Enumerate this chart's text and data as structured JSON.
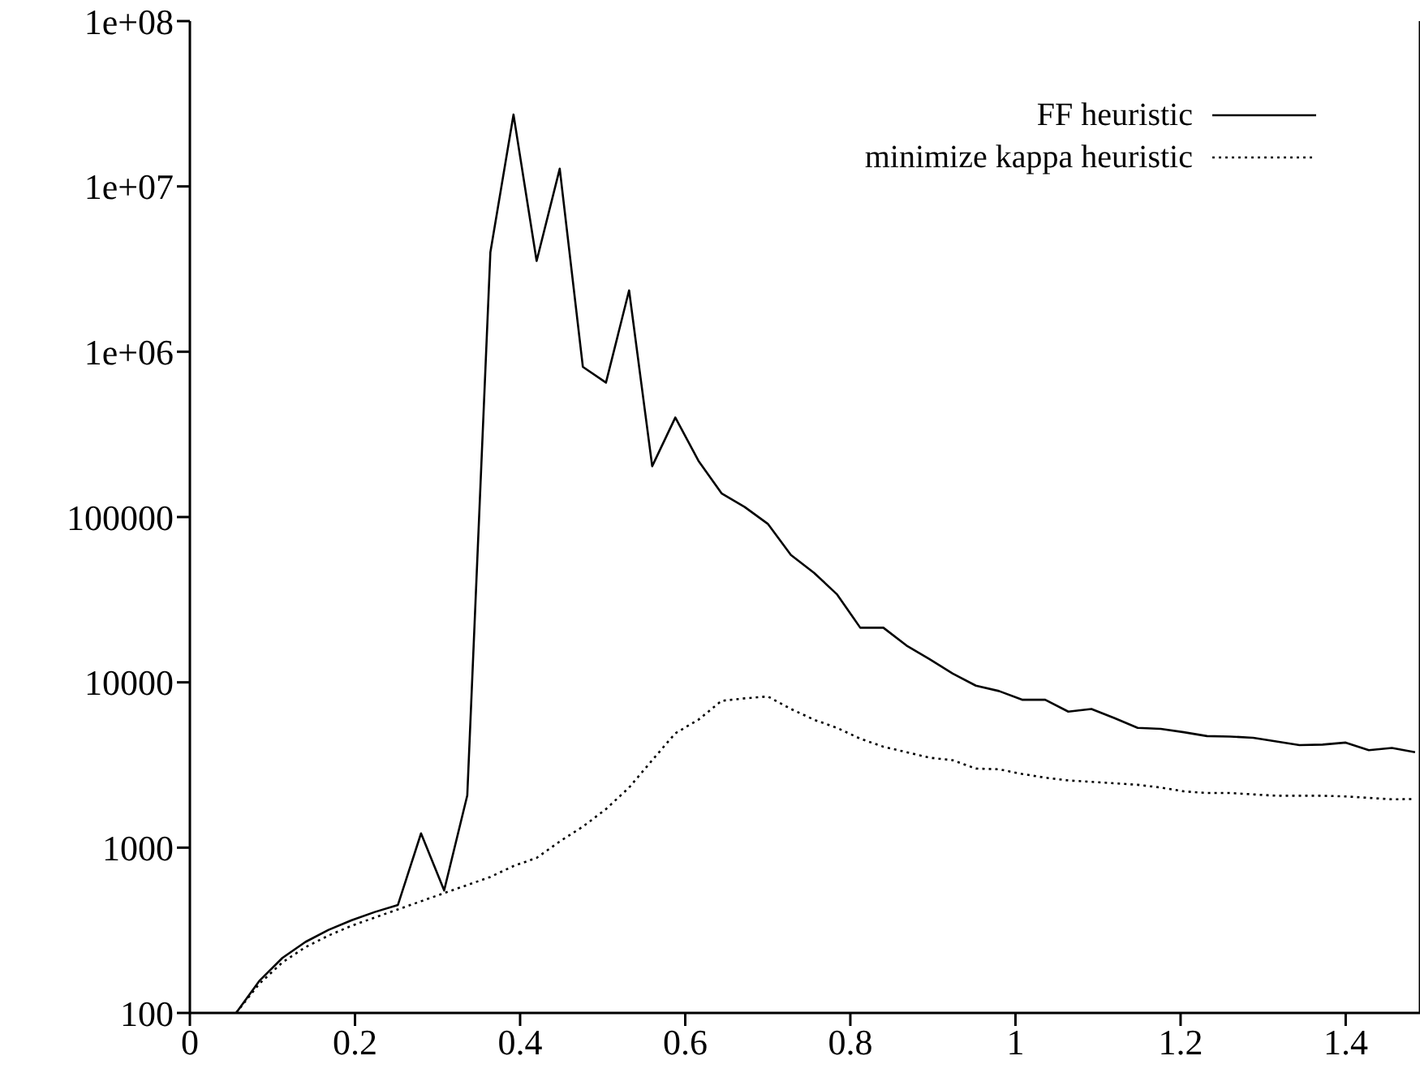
{
  "chart_data": {
    "type": "line",
    "log": "y",
    "grid": false,
    "legend": "top right",
    "xlim": [
      0,
      1.49
    ],
    "xticks": [
      0,
      0.2,
      0.4,
      0.6,
      0.8,
      1,
      1.2,
      1.4
    ],
    "ylim": [
      100,
      100000000
    ],
    "yticks": [
      100,
      1000,
      10000,
      100000,
      {
        "value": 1000000,
        "label": "1e+06"
      },
      {
        "value": 10000000,
        "label": "1e+07"
      },
      {
        "value": 100000000,
        "label": "1e+08"
      }
    ],
    "x": [
      0.056,
      0.084,
      0.112,
      0.14,
      0.168,
      0.196,
      0.224,
      0.252,
      0.28,
      0.308,
      0.336,
      0.364,
      0.392,
      0.42,
      0.448,
      0.476,
      0.504,
      0.532,
      0.56,
      0.588,
      0.616,
      0.644,
      0.672,
      0.7,
      0.728,
      0.756,
      0.784,
      0.812,
      0.84,
      0.868,
      0.896,
      0.924,
      0.952,
      0.98,
      1.008,
      1.036,
      1.064,
      1.092,
      1.12,
      1.148,
      1.176,
      1.204,
      1.232,
      1.26,
      1.288,
      1.316,
      1.344,
      1.372,
      1.4,
      1.428,
      1.456,
      1.484
    ],
    "series": [
      {
        "name": "FF heuristic",
        "color": "#000000",
        "line_style": "solid",
        "values": [
          100,
          156,
          215,
          269,
          318,
          364,
          408,
          450,
          1220,
          551,
          2070,
          4000000,
          27200000,
          3540000,
          12800000,
          810000,
          650000,
          2350000,
          203000,
          400000,
          219000,
          139000,
          115000,
          91000,
          59000,
          46000,
          34000,
          21400,
          21400,
          16700,
          13800,
          11300,
          9550,
          8860,
          7850,
          7850,
          6650,
          6900,
          6070,
          5300,
          5230,
          4990,
          4730,
          4700,
          4620,
          4390,
          4170,
          4200,
          4320,
          3890,
          4010,
          3780
        ]
      },
      {
        "name": "minimize kappa heuristic",
        "color": "#000000",
        "line_style": "dotted",
        "values": [
          100,
          150,
          202,
          250,
          294,
          337,
          378,
          423,
          474,
          531,
          594,
          665,
          774,
          867,
          1090,
          1340,
          1710,
          2310,
          3380,
          4920,
          5940,
          7730,
          8000,
          8220,
          6900,
          5940,
          5300,
          4560,
          4080,
          3780,
          3500,
          3380,
          3010,
          2980,
          2790,
          2650,
          2550,
          2500,
          2450,
          2400,
          2310,
          2190,
          2140,
          2140,
          2100,
          2060,
          2060,
          2060,
          2040,
          2000,
          1960,
          1970
        ]
      }
    ]
  }
}
